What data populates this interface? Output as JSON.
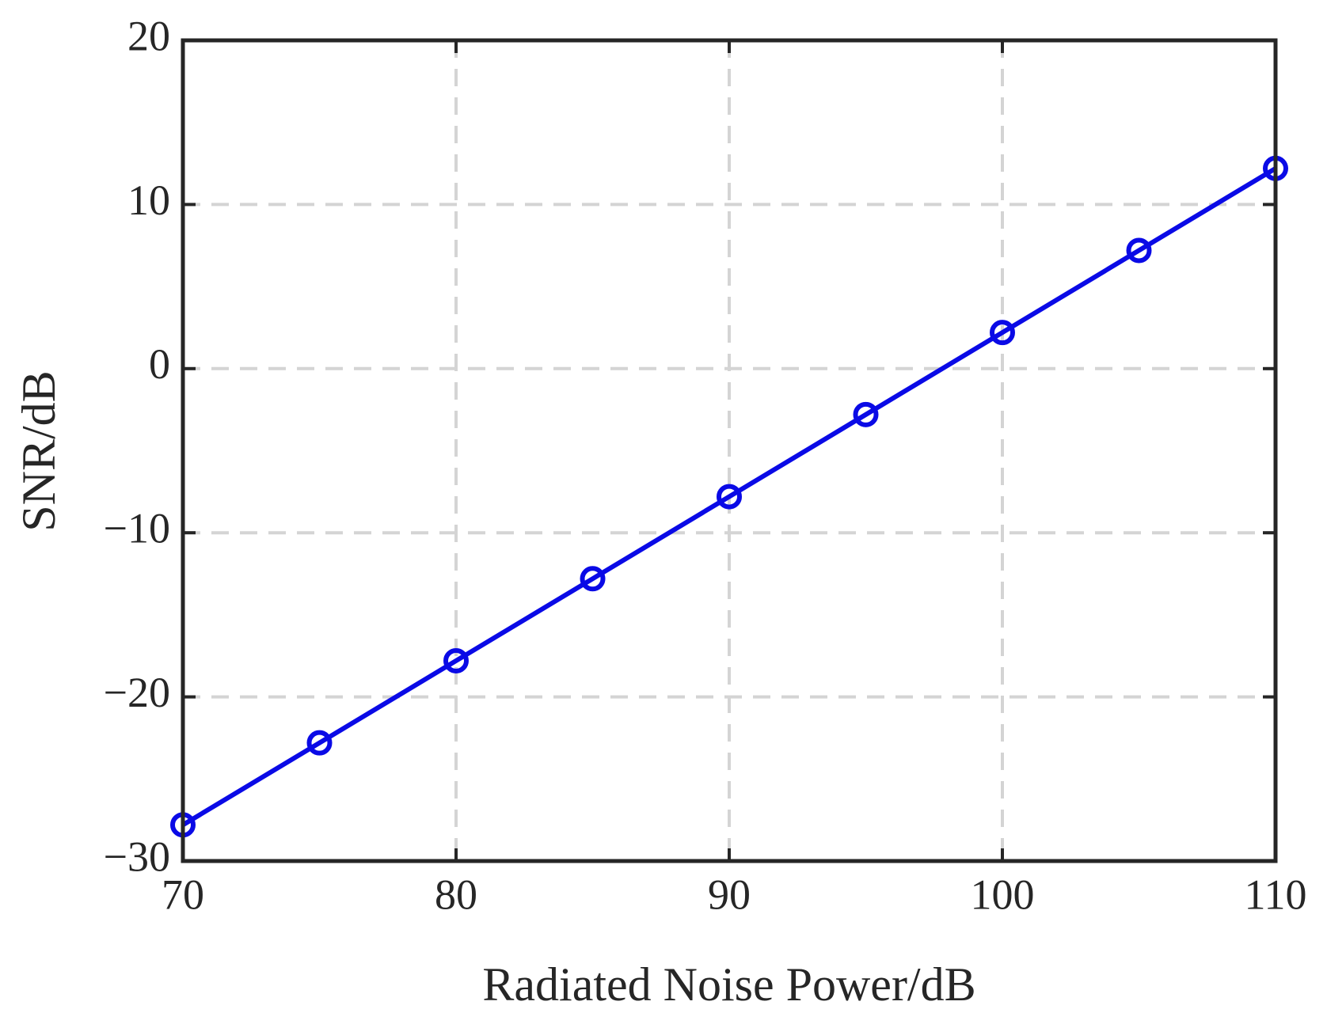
{
  "chart_data": {
    "type": "line",
    "xlabel": "Radiated Noise Power/dB",
    "ylabel": "SNR/dB",
    "x": [
      70,
      75,
      80,
      85,
      90,
      95,
      100,
      105,
      110
    ],
    "series": [
      {
        "color": "#0a0ae6",
        "marker": "circle",
        "values": [
          -27.8,
          -22.8,
          -17.8,
          -12.8,
          -7.8,
          -2.8,
          2.2,
          7.2,
          12.2
        ]
      }
    ],
    "xlim": [
      70,
      110
    ],
    "xticks": [
      70,
      80,
      90,
      100,
      110
    ],
    "ylim": [
      -30,
      20
    ],
    "yticks": [
      {
        "value": -30,
        "label": "−30"
      },
      {
        "value": -20,
        "label": "−20"
      },
      {
        "value": -10,
        "label": "−10"
      },
      0,
      10,
      20
    ],
    "grid": true
  }
}
